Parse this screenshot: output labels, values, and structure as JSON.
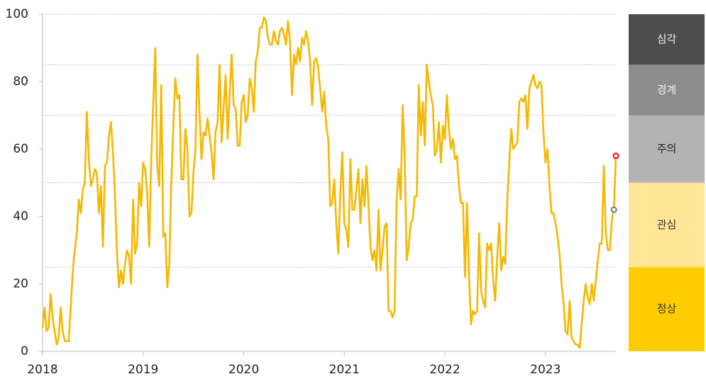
{
  "chart_data": {
    "type": "line",
    "x": [
      2018,
      2018.02,
      2018.04,
      2018.06,
      2018.08,
      2018.1,
      2018.12,
      2018.14,
      2018.16,
      2018.18,
      2018.2,
      2018.22,
      2018.24,
      2018.26,
      2018.28,
      2018.3,
      2018.32,
      2018.34,
      2018.36,
      2018.38,
      2018.4,
      2018.42,
      2018.44,
      2018.46,
      2018.48,
      2018.5,
      2018.52,
      2018.54,
      2018.56,
      2018.58,
      2018.6,
      2018.62,
      2018.64,
      2018.66,
      2018.68,
      2018.7,
      2018.72,
      2018.74,
      2018.76,
      2018.78,
      2018.8,
      2018.82,
      2018.84,
      2018.86,
      2018.88,
      2018.9,
      2018.92,
      2018.94,
      2018.96,
      2018.98,
      2019,
      2019.02,
      2019.04,
      2019.06,
      2019.08,
      2019.1,
      2019.12,
      2019.14,
      2019.16,
      2019.18,
      2019.2,
      2019.22,
      2019.24,
      2019.26,
      2019.28,
      2019.3,
      2019.32,
      2019.34,
      2019.36,
      2019.38,
      2019.4,
      2019.42,
      2019.44,
      2019.46,
      2019.48,
      2019.5,
      2019.52,
      2019.54,
      2019.56,
      2019.58,
      2019.6,
      2019.62,
      2019.64,
      2019.66,
      2019.68,
      2019.7,
      2019.72,
      2019.74,
      2019.76,
      2019.78,
      2019.8,
      2019.82,
      2019.84,
      2019.86,
      2019.88,
      2019.9,
      2019.92,
      2019.94,
      2019.96,
      2019.98,
      2020,
      2020.02,
      2020.04,
      2020.06,
      2020.08,
      2020.1,
      2020.12,
      2020.14,
      2020.16,
      2020.18,
      2020.2,
      2020.22,
      2020.24,
      2020.26,
      2020.28,
      2020.3,
      2020.32,
      2020.34,
      2020.36,
      2020.38,
      2020.4,
      2020.42,
      2020.44,
      2020.46,
      2020.48,
      2020.5,
      2020.52,
      2020.54,
      2020.56,
      2020.58,
      2020.6,
      2020.62,
      2020.64,
      2020.66,
      2020.68,
      2020.7,
      2020.72,
      2020.74,
      2020.76,
      2020.78,
      2020.8,
      2020.82,
      2020.84,
      2020.86,
      2020.88,
      2020.9,
      2020.92,
      2020.94,
      2020.96,
      2020.98,
      2021,
      2021.02,
      2021.04,
      2021.06,
      2021.08,
      2021.1,
      2021.12,
      2021.14,
      2021.16,
      2021.18,
      2021.2,
      2021.22,
      2021.24,
      2021.26,
      2021.28,
      2021.3,
      2021.32,
      2021.34,
      2021.36,
      2021.38,
      2021.4,
      2021.42,
      2021.44,
      2021.46,
      2021.48,
      2021.5,
      2021.52,
      2021.54,
      2021.56,
      2021.58,
      2021.6,
      2021.62,
      2021.64,
      2021.66,
      2021.68,
      2021.7,
      2021.72,
      2021.74,
      2021.76,
      2021.78,
      2021.8,
      2021.82,
      2021.84,
      2021.86,
      2021.88,
      2021.9,
      2021.92,
      2021.94,
      2021.96,
      2021.98,
      2022,
      2022.02,
      2022.04,
      2022.06,
      2022.08,
      2022.1,
      2022.12,
      2022.14,
      2022.16,
      2022.18,
      2022.2,
      2022.22,
      2022.24,
      2022.26,
      2022.28,
      2022.3,
      2022.32,
      2022.34,
      2022.36,
      2022.38,
      2022.4,
      2022.42,
      2022.44,
      2022.46,
      2022.48,
      2022.5,
      2022.52,
      2022.54,
      2022.56,
      2022.58,
      2022.6,
      2022.62,
      2022.64,
      2022.66,
      2022.68,
      2022.7,
      2022.72,
      2022.74,
      2022.76,
      2022.78,
      2022.8,
      2022.82,
      2022.84,
      2022.86,
      2022.88,
      2022.9,
      2022.92,
      2022.94,
      2022.96,
      2022.98,
      2023,
      2023.02,
      2023.04,
      2023.06,
      2023.08,
      2023.1,
      2023.12,
      2023.14,
      2023.16,
      2023.18,
      2023.2,
      2023.22,
      2023.24,
      2023.26,
      2023.28,
      2023.3,
      2023.32,
      2023.34,
      2023.36,
      2023.38,
      2023.4,
      2023.42,
      2023.44,
      2023.46,
      2023.48,
      2023.5,
      2023.52,
      2023.54,
      2023.56,
      2023.58,
      2023.6,
      2023.62,
      2023.64,
      2023.66,
      2023.68,
      2023.7
    ],
    "series": [
      {
        "color": "#f5b800",
        "values": [
          7,
          13,
          6,
          7,
          17,
          10,
          6,
          2,
          4,
          13,
          6,
          3,
          3,
          3,
          13,
          24,
          30,
          35,
          45,
          41,
          48,
          50,
          71,
          57,
          49,
          51,
          54,
          53,
          41,
          49,
          31,
          55,
          56,
          64,
          68,
          59,
          46,
          29,
          19,
          24,
          20,
          26,
          30,
          28,
          20,
          45,
          29,
          32,
          50,
          43,
          56,
          54,
          47,
          31,
          57,
          73,
          90,
          55,
          49,
          79,
          34,
          35,
          19,
          26,
          50,
          67,
          81,
          75,
          76,
          51,
          51,
          66,
          60,
          40,
          41,
          53,
          60,
          88,
          71,
          57,
          65,
          64,
          69,
          64,
          59,
          51,
          65,
          68,
          85,
          62,
          72,
          82,
          63,
          76,
          88,
          73,
          72,
          61,
          61,
          74,
          76,
          68,
          70,
          81,
          78,
          71,
          86,
          89,
          96,
          96,
          99,
          98,
          93,
          91,
          91,
          95,
          92,
          91,
          95,
          96,
          94,
          91,
          98,
          92,
          76,
          88,
          85,
          90,
          86,
          93,
          91,
          95,
          92,
          86,
          73,
          86,
          87,
          84,
          78,
          71,
          77,
          67,
          63,
          43,
          44,
          51,
          38,
          29,
          47,
          59,
          38,
          36,
          31,
          57,
          42,
          42,
          48,
          54,
          38,
          51,
          43,
          55,
          44,
          31,
          27,
          30,
          24,
          42,
          24,
          30,
          37,
          38,
          12,
          12,
          10,
          12,
          45,
          54,
          45,
          73,
          58,
          27,
          31,
          38,
          39,
          46,
          46,
          79,
          64,
          74,
          61,
          85,
          80,
          76,
          73,
          58,
          60,
          68,
          56,
          67,
          63,
          76,
          66,
          60,
          63,
          57,
          58,
          49,
          44,
          44,
          22,
          44,
          22,
          8,
          12,
          11,
          12,
          35,
          18,
          15,
          13,
          32,
          30,
          32,
          21,
          15,
          28,
          38,
          24,
          28,
          26,
          45,
          56,
          66,
          60,
          61,
          62,
          74,
          75,
          74,
          76,
          66,
          78,
          80,
          82,
          79,
          78,
          80,
          79,
          65,
          56,
          60,
          49,
          41,
          41,
          38,
          34,
          29,
          20,
          14,
          6,
          5,
          15,
          4,
          3,
          2,
          2,
          1,
          8,
          15,
          20,
          16,
          14,
          20,
          15,
          21,
          27,
          32,
          32,
          55,
          35,
          30,
          30,
          39,
          42,
          58
        ]
      }
    ],
    "markers": [
      {
        "x": 2023.7,
        "y": 58,
        "color": "#e8001c"
      },
      {
        "x": 2023.68,
        "y": 42,
        "color": "#777777"
      }
    ],
    "bands": [
      {
        "label": "정상",
        "from": 0,
        "to": 25,
        "color": "#ffcc00",
        "text_color": "#333333"
      },
      {
        "label": "관심",
        "from": 25,
        "to": 50,
        "color": "#ffe595",
        "text_color": "#333333"
      },
      {
        "label": "주의",
        "from": 50,
        "to": 70,
        "color": "#b3b3b3",
        "text_color": "#222222"
      },
      {
        "label": "경계",
        "from": 70,
        "to": 85,
        "color": "#8c8c8c",
        "text_color": "#f2f2f2"
      },
      {
        "label": "심각",
        "from": 85,
        "to": 100,
        "color": "#4d4d4d",
        "text_color": "#f2f2f2"
      }
    ],
    "xlim": [
      2018,
      2023.7
    ],
    "xticks": [
      2018,
      2019,
      2020,
      2021,
      2022,
      2023
    ],
    "ylim": [
      0,
      100
    ],
    "yticks": [
      0,
      20,
      40,
      60,
      80,
      100
    ]
  }
}
